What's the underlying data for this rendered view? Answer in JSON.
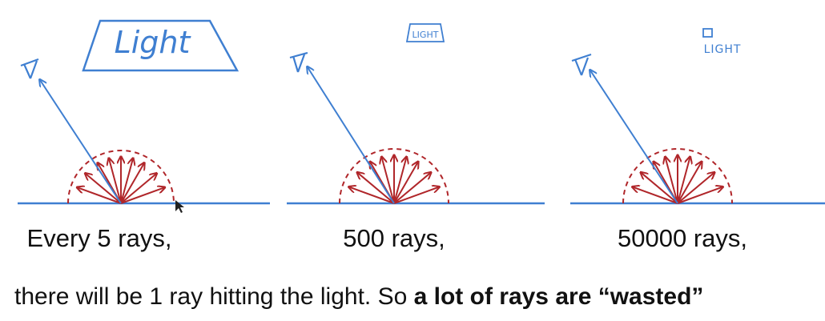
{
  "panels": [
    {
      "light_label": "Light",
      "caption": "Every 5 rays,"
    },
    {
      "light_label": "LIGHT",
      "caption": "500 rays,"
    },
    {
      "light_label": "LIGHT",
      "caption": "50000 rays,"
    }
  ],
  "bottom": {
    "plain": "there will be 1 ray hitting the light. So ",
    "bold": "a lot of rays are “wasted”"
  },
  "colors": {
    "blue": "#3f7fd1",
    "red": "#b0262a"
  }
}
